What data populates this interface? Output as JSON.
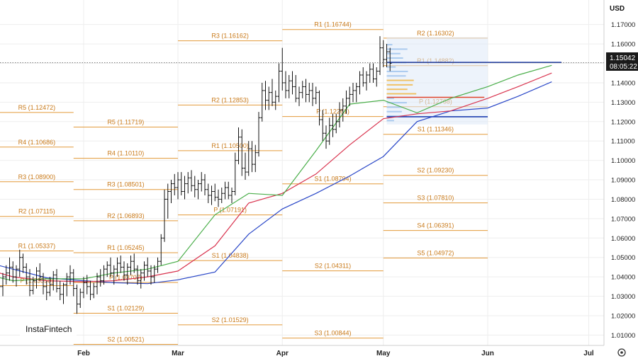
{
  "chart_data": {
    "type": "candlestick",
    "currency_label": "USD",
    "current_price": "1.15042",
    "countdown": "08:05:22",
    "logo": "InstaFintech",
    "ylim": [
      1.0,
      1.175
    ],
    "y_ticks": [
      "1.17000",
      "1.16000",
      "1.15000",
      "1.14000",
      "1.13000",
      "1.12000",
      "1.11000",
      "1.10000",
      "1.09000",
      "1.08000",
      "1.07000",
      "1.06000",
      "1.05000",
      "1.04000",
      "1.03000",
      "1.02000",
      "1.01000"
    ],
    "months": [
      {
        "label": "Feb",
        "day": 31
      },
      {
        "label": "Mar",
        "day": 59
      },
      {
        "label": "Apr",
        "day": 90
      },
      {
        "label": "May",
        "day": 120
      },
      {
        "label": "Jun",
        "day": 151
      },
      {
        "label": "Jul",
        "day": 181
      }
    ],
    "pivot_periods": [
      {
        "from": 0,
        "to": 28,
        "levels": [
          {
            "label": "R5 (1.12472)",
            "value": 1.12472
          },
          {
            "label": "R4 (1.10686)",
            "value": 1.10686
          },
          {
            "label": "R3 (1.08900)",
            "value": 1.089
          },
          {
            "label": "R2 (1.07115)",
            "value": 1.07115
          },
          {
            "label": "R1 (1.05337)",
            "value": 1.05337
          },
          {
            "label": "P (1.03550)",
            "value": 1.0355
          }
        ]
      },
      {
        "from": 28,
        "to": 59,
        "levels": [
          {
            "label": "R5 (1.11719)",
            "value": 1.11719
          },
          {
            "label": "R4 (1.10110)",
            "value": 1.1011
          },
          {
            "label": "R3 (1.08501)",
            "value": 1.08501
          },
          {
            "label": "R2 (1.06893)",
            "value": 1.06893
          },
          {
            "label": "R1 (1.05245)",
            "value": 1.05245
          },
          {
            "label": "P (1.03707)",
            "value": 1.03707
          },
          {
            "label": "S1 (1.02129)",
            "value": 1.02129
          },
          {
            "label": "S2 (1.00521)",
            "value": 1.00521
          }
        ]
      },
      {
        "from": 59,
        "to": 90,
        "levels": [
          {
            "label": "R3 (1.16162)",
            "value": 1.16162
          },
          {
            "label": "R2 (1.12853)",
            "value": 1.12853
          },
          {
            "label": "R1 (1.10500)",
            "value": 1.105
          },
          {
            "label": "P (1.07191)",
            "value": 1.07191
          },
          {
            "label": "S1 (1.04838)",
            "value": 1.04838
          },
          {
            "label": "S2 (1.01529)",
            "value": 1.01529
          }
        ]
      },
      {
        "from": 90,
        "to": 120,
        "levels": [
          {
            "label": "R1 (1.16744)",
            "value": 1.16744
          },
          {
            "label": "P (1.12261)",
            "value": 1.12261
          },
          {
            "label": "S1 (1.08794)",
            "value": 1.08794
          },
          {
            "label": "S2 (1.04311)",
            "value": 1.04311
          },
          {
            "label": "S3 (1.00844)",
            "value": 1.00844
          }
        ]
      },
      {
        "from": 120,
        "to": 151,
        "levels": [
          {
            "label": "R2 (1.16302)",
            "value": 1.16302
          },
          {
            "label": "R1 (1.14882)",
            "value": 1.14882
          },
          {
            "label": "P (1.12768)",
            "value": 1.12768
          },
          {
            "label": "S1 (1.11346)",
            "value": 1.11346
          },
          {
            "label": "S2 (1.09230)",
            "value": 1.0923
          },
          {
            "label": "S3 (1.07810)",
            "value": 1.0781
          },
          {
            "label": "S4 (1.06391)",
            "value": 1.06391
          },
          {
            "label": "S5 (1.04972)",
            "value": 1.04972
          }
        ]
      }
    ],
    "series": [
      {
        "name": "",
        "color": "#2b48c8",
        "day": [
          0,
          10,
          20,
          31,
          40,
          50,
          59,
          70,
          80,
          90,
          100,
          110,
          120,
          130,
          140,
          151,
          160,
          170
        ],
        "values": [
          1.0485,
          1.044,
          1.0395,
          1.038,
          1.037,
          1.0365,
          1.0385,
          1.0425,
          1.062,
          1.075,
          1.083,
          1.092,
          1.102,
          1.12,
          1.1255,
          1.127,
          1.133,
          1.1405
        ]
      },
      {
        "name": "",
        "color": "#d9344f",
        "day": [
          0,
          10,
          20,
          31,
          40,
          50,
          59,
          70,
          80,
          90,
          100,
          110,
          120,
          130,
          140,
          151,
          160,
          170
        ],
        "values": [
          1.045,
          1.04,
          1.038,
          1.0375,
          1.038,
          1.04,
          1.043,
          1.056,
          1.078,
          1.083,
          1.093,
          1.108,
          1.1215,
          1.124,
          1.1255,
          1.132,
          1.138,
          1.145
        ]
      },
      {
        "name": "",
        "color": "#4aae4a",
        "day": [
          0,
          10,
          20,
          31,
          40,
          50,
          59,
          70,
          80,
          90,
          100,
          110,
          120,
          130,
          140,
          151,
          160,
          170
        ],
        "values": [
          1.042,
          1.038,
          1.039,
          1.039,
          1.042,
          1.044,
          1.048,
          1.072,
          1.083,
          1.082,
          1.105,
          1.129,
          1.131,
          1.1245,
          1.132,
          1.138,
          1.144,
          1.149
        ]
      }
    ],
    "candles": [
      [
        0,
        1.036,
        1.04,
        1.03,
        1.034
      ],
      [
        1,
        1.034,
        1.036,
        1.024,
        1.028
      ],
      [
        2,
        1.028,
        1.03,
        1.018,
        1.022
      ],
      [
        3,
        1.022,
        1.032,
        1.02,
        1.029
      ],
      [
        4,
        1.029,
        1.038,
        1.026,
        1.031
      ],
      [
        5,
        1.031,
        1.034,
        1.024,
        1.027
      ],
      [
        6,
        1.027,
        1.038,
        1.025,
        1.035
      ],
      [
        7,
        1.035,
        1.042,
        1.03,
        1.04
      ],
      [
        8,
        1.04,
        1.046,
        1.036,
        1.042
      ],
      [
        9,
        1.042,
        1.05,
        1.038,
        1.045
      ],
      [
        10,
        1.045,
        1.048,
        1.037,
        1.04
      ],
      [
        11,
        1.04,
        1.046,
        1.035,
        1.044
      ],
      [
        12,
        1.044,
        1.054,
        1.04,
        1.05
      ],
      [
        13,
        1.05,
        1.052,
        1.042,
        1.045
      ],
      [
        14,
        1.045,
        1.047,
        1.036,
        1.04
      ],
      [
        15,
        1.04,
        1.044,
        1.03,
        1.033
      ],
      [
        16,
        1.033,
        1.04,
        1.031,
        1.038
      ],
      [
        17,
        1.038,
        1.045,
        1.034,
        1.043
      ],
      [
        18,
        1.043,
        1.047,
        1.038,
        1.04
      ],
      [
        19,
        1.04,
        1.042,
        1.031,
        1.035
      ],
      [
        20,
        1.035,
        1.038,
        1.028,
        1.032
      ],
      [
        21,
        1.032,
        1.04,
        1.03,
        1.036
      ],
      [
        22,
        1.036,
        1.043,
        1.033,
        1.041
      ],
      [
        23,
        1.041,
        1.044,
        1.032,
        1.034
      ],
      [
        24,
        1.034,
        1.038,
        1.028,
        1.031
      ],
      [
        25,
        1.031,
        1.037,
        1.026,
        1.036
      ],
      [
        26,
        1.036,
        1.042,
        1.03,
        1.04
      ],
      [
        27,
        1.04,
        1.046,
        1.036,
        1.042
      ],
      [
        28,
        1.042,
        1.044,
        1.03,
        1.034
      ],
      [
        29,
        1.034,
        1.036,
        1.021,
        1.026
      ],
      [
        30,
        1.026,
        1.034,
        1.024,
        1.032
      ],
      [
        31,
        1.032,
        1.04,
        1.029,
        1.037
      ],
      [
        32,
        1.037,
        1.041,
        1.031,
        1.035
      ],
      [
        33,
        1.035,
        1.038,
        1.028,
        1.031
      ],
      [
        34,
        1.031,
        1.037,
        1.029,
        1.035
      ],
      [
        35,
        1.035,
        1.042,
        1.031,
        1.04
      ],
      [
        36,
        1.04,
        1.044,
        1.035,
        1.038
      ],
      [
        37,
        1.038,
        1.046,
        1.036,
        1.044
      ],
      [
        38,
        1.044,
        1.048,
        1.04,
        1.046
      ],
      [
        39,
        1.046,
        1.05,
        1.04,
        1.042
      ],
      [
        40,
        1.042,
        1.046,
        1.036,
        1.044
      ],
      [
        41,
        1.044,
        1.05,
        1.04,
        1.047
      ],
      [
        42,
        1.047,
        1.051,
        1.042,
        1.045
      ],
      [
        43,
        1.045,
        1.048,
        1.038,
        1.041
      ],
      [
        44,
        1.041,
        1.047,
        1.036,
        1.045
      ],
      [
        45,
        1.045,
        1.051,
        1.041,
        1.048
      ],
      [
        46,
        1.048,
        1.052,
        1.042,
        1.044
      ],
      [
        47,
        1.044,
        1.046,
        1.036,
        1.038
      ],
      [
        48,
        1.038,
        1.044,
        1.034,
        1.042
      ],
      [
        49,
        1.042,
        1.048,
        1.038,
        1.046
      ],
      [
        50,
        1.046,
        1.05,
        1.04,
        1.043
      ],
      [
        51,
        1.043,
        1.046,
        1.036,
        1.04
      ],
      [
        52,
        1.04,
        1.046,
        1.037,
        1.044
      ],
      [
        53,
        1.044,
        1.05,
        1.042,
        1.048
      ],
      [
        54,
        1.048,
        1.062,
        1.046,
        1.06
      ],
      [
        55,
        1.06,
        1.085,
        1.058,
        1.08
      ],
      [
        56,
        1.08,
        1.088,
        1.07,
        1.084
      ],
      [
        57,
        1.084,
        1.09,
        1.078,
        1.088
      ],
      [
        58,
        1.088,
        1.093,
        1.082,
        1.086
      ],
      [
        59,
        1.086,
        1.094,
        1.08,
        1.09
      ],
      [
        60,
        1.09,
        1.094,
        1.082,
        1.084
      ],
      [
        61,
        1.084,
        1.092,
        1.08,
        1.088
      ],
      [
        62,
        1.088,
        1.094,
        1.083,
        1.091
      ],
      [
        63,
        1.091,
        1.095,
        1.084,
        1.087
      ],
      [
        64,
        1.087,
        1.092,
        1.081,
        1.085
      ],
      [
        65,
        1.085,
        1.09,
        1.08,
        1.088
      ],
      [
        66,
        1.088,
        1.094,
        1.084,
        1.09
      ],
      [
        67,
        1.09,
        1.093,
        1.082,
        1.085
      ],
      [
        68,
        1.085,
        1.088,
        1.078,
        1.082
      ],
      [
        69,
        1.082,
        1.087,
        1.077,
        1.084
      ],
      [
        70,
        1.084,
        1.088,
        1.079,
        1.081
      ],
      [
        71,
        1.081,
        1.085,
        1.076,
        1.08
      ],
      [
        72,
        1.08,
        1.086,
        1.078,
        1.083
      ],
      [
        73,
        1.083,
        1.089,
        1.08,
        1.086
      ],
      [
        74,
        1.086,
        1.089,
        1.08,
        1.082
      ],
      [
        75,
        1.082,
        1.086,
        1.078,
        1.084
      ],
      [
        76,
        1.084,
        1.104,
        1.082,
        1.1
      ],
      [
        77,
        1.1,
        1.117,
        1.098,
        1.112
      ],
      [
        78,
        1.112,
        1.116,
        1.092,
        1.096
      ],
      [
        79,
        1.096,
        1.104,
        1.09,
        1.094
      ],
      [
        80,
        1.094,
        1.11,
        1.092,
        1.106
      ],
      [
        81,
        1.106,
        1.11,
        1.094,
        1.098
      ],
      [
        82,
        1.098,
        1.108,
        1.094,
        1.104
      ],
      [
        83,
        1.104,
        1.125,
        1.102,
        1.122
      ],
      [
        84,
        1.122,
        1.14,
        1.12,
        1.136
      ],
      [
        85,
        1.136,
        1.141,
        1.126,
        1.131
      ],
      [
        86,
        1.131,
        1.138,
        1.126,
        1.135
      ],
      [
        87,
        1.135,
        1.142,
        1.128,
        1.13
      ],
      [
        88,
        1.13,
        1.136,
        1.126,
        1.133
      ],
      [
        89,
        1.133,
        1.15,
        1.13,
        1.146
      ],
      [
        90,
        1.146,
        1.158,
        1.136,
        1.14
      ],
      [
        91,
        1.14,
        1.146,
        1.132,
        1.136
      ],
      [
        92,
        1.136,
        1.144,
        1.132,
        1.141
      ],
      [
        93,
        1.141,
        1.146,
        1.134,
        1.138
      ],
      [
        94,
        1.138,
        1.144,
        1.13,
        1.132
      ],
      [
        95,
        1.132,
        1.138,
        1.128,
        1.135
      ],
      [
        96,
        1.135,
        1.141,
        1.132,
        1.138
      ],
      [
        97,
        1.138,
        1.142,
        1.13,
        1.134
      ],
      [
        98,
        1.134,
        1.14,
        1.13,
        1.136
      ],
      [
        99,
        1.136,
        1.14,
        1.128,
        1.132
      ],
      [
        100,
        1.132,
        1.138,
        1.129,
        1.135
      ],
      [
        101,
        1.135,
        1.136,
        1.118,
        1.121
      ],
      [
        102,
        1.121,
        1.126,
        1.11,
        1.114
      ],
      [
        103,
        1.114,
        1.118,
        1.106,
        1.11
      ],
      [
        104,
        1.11,
        1.122,
        1.108,
        1.118
      ],
      [
        105,
        1.118,
        1.124,
        1.112,
        1.116
      ],
      [
        106,
        1.116,
        1.124,
        1.114,
        1.12
      ],
      [
        107,
        1.12,
        1.13,
        1.117,
        1.126
      ],
      [
        108,
        1.126,
        1.132,
        1.12,
        1.128
      ],
      [
        109,
        1.128,
        1.136,
        1.124,
        1.132
      ],
      [
        110,
        1.132,
        1.138,
        1.128,
        1.134
      ],
      [
        111,
        1.134,
        1.14,
        1.13,
        1.136
      ],
      [
        112,
        1.136,
        1.14,
        1.13,
        1.138
      ],
      [
        113,
        1.138,
        1.146,
        1.134,
        1.144
      ],
      [
        114,
        1.144,
        1.148,
        1.138,
        1.14
      ],
      [
        115,
        1.14,
        1.146,
        1.136,
        1.144
      ],
      [
        116,
        1.144,
        1.15,
        1.14,
        1.147
      ],
      [
        117,
        1.147,
        1.15,
        1.14,
        1.142
      ],
      [
        118,
        1.142,
        1.148,
        1.138,
        1.146
      ],
      [
        119,
        1.146,
        1.164,
        1.144,
        1.158
      ],
      [
        120,
        1.158,
        1.162,
        1.148,
        1.152
      ],
      [
        121,
        1.152,
        1.16,
        1.148,
        1.156
      ],
      [
        122,
        1.156,
        1.158,
        1.146,
        1.15
      ]
    ]
  }
}
